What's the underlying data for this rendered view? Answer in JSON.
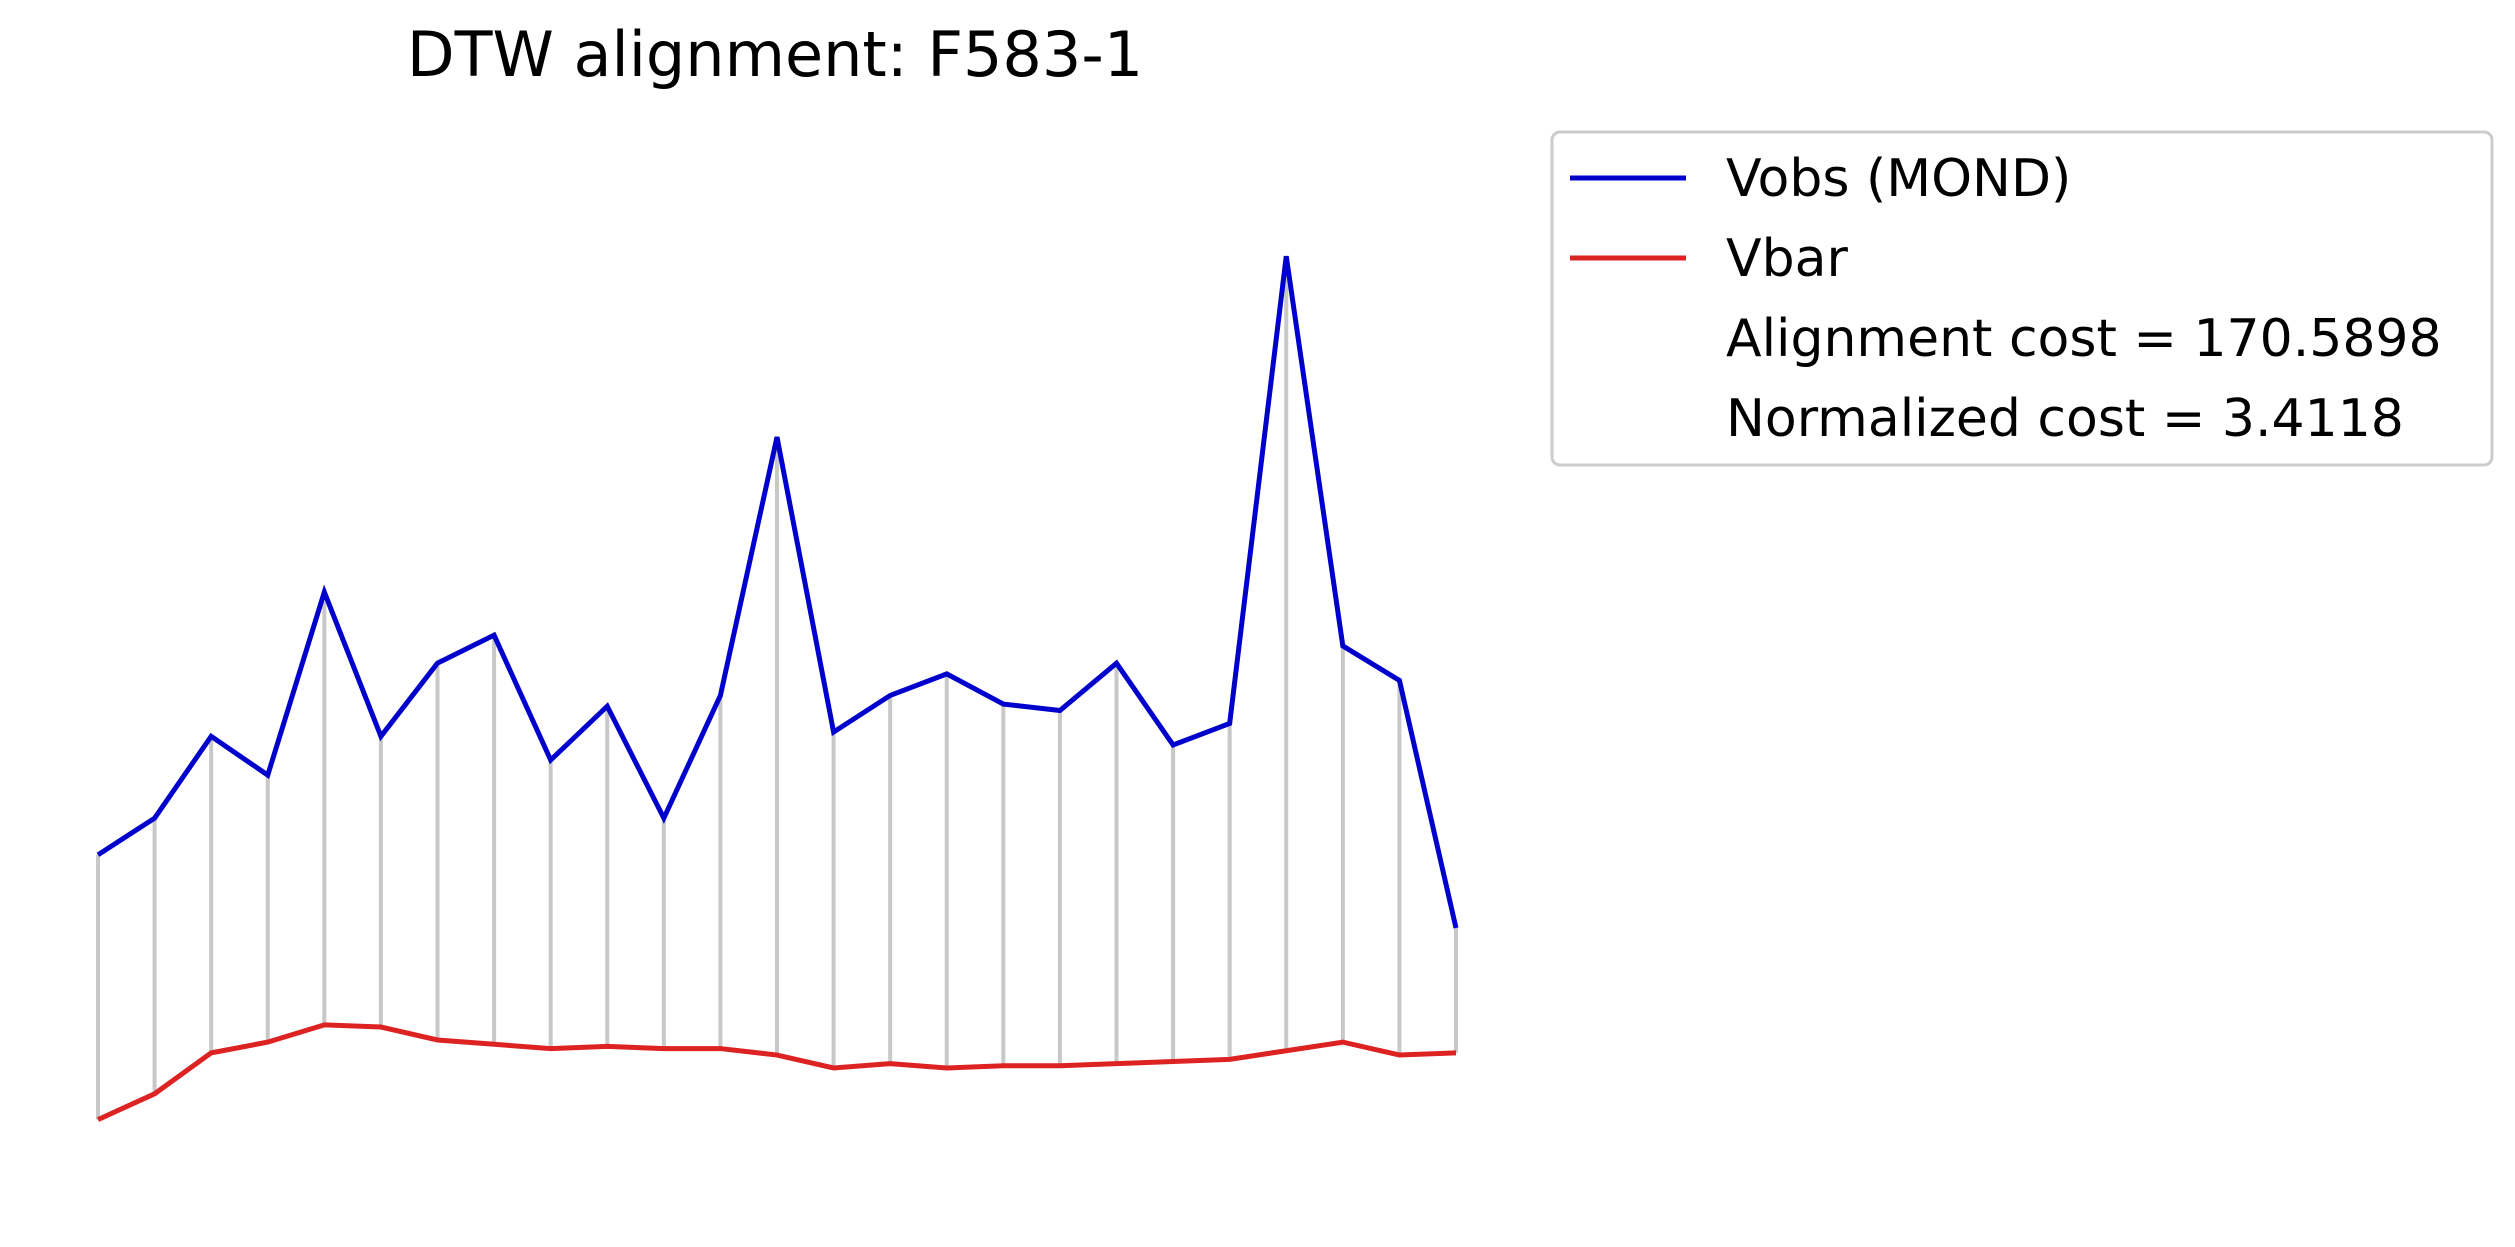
{
  "chart_data": {
    "type": "line",
    "title": "DTW alignment: F583-1",
    "xlabel": "",
    "ylabel": "",
    "axes_visible": false,
    "grid": false,
    "legend_position": "upper-right-outside",
    "ylim": [
      0,
      47
    ],
    "x": [
      0,
      1,
      2,
      3,
      4,
      5,
      6,
      7,
      8,
      9,
      10,
      11,
      12,
      13,
      14,
      15,
      16,
      17,
      18,
      19,
      20,
      21,
      22,
      23,
      24
    ],
    "series": [
      {
        "name": "Vobs (MOND)",
        "color": "#0000cc",
        "values": [
          14.5,
          16.2,
          20.0,
          18.2,
          26.7,
          20.0,
          23.4,
          24.7,
          18.9,
          21.4,
          16.2,
          21.9,
          33.9,
          20.2,
          21.9,
          22.9,
          21.5,
          21.2,
          23.4,
          19.6,
          20.6,
          42.3,
          24.2,
          22.6,
          11.1
        ]
      },
      {
        "name": "Vbar",
        "color": "#dd2222",
        "values": [
          2.2,
          3.4,
          5.3,
          5.8,
          6.6,
          6.5,
          5.9,
          5.7,
          5.5,
          5.6,
          5.5,
          5.5,
          5.2,
          4.6,
          4.8,
          4.6,
          4.7,
          4.7,
          4.8,
          4.9,
          5.0,
          5.4,
          5.8,
          5.2,
          5.3
        ]
      }
    ],
    "alignment": {
      "color": "#c8c8c8",
      "pairs": [
        [
          0,
          0
        ],
        [
          1,
          1
        ],
        [
          2,
          2
        ],
        [
          3,
          3
        ],
        [
          4,
          4
        ],
        [
          5,
          5
        ],
        [
          6,
          6
        ],
        [
          7,
          7
        ],
        [
          8,
          8
        ],
        [
          9,
          9
        ],
        [
          10,
          10
        ],
        [
          11,
          11
        ],
        [
          12,
          12
        ],
        [
          13,
          13
        ],
        [
          14,
          14
        ],
        [
          15,
          15
        ],
        [
          16,
          16
        ],
        [
          17,
          17
        ],
        [
          18,
          18
        ],
        [
          19,
          19
        ],
        [
          20,
          20
        ],
        [
          21,
          21
        ],
        [
          22,
          22
        ],
        [
          23,
          23
        ],
        [
          24,
          24
        ]
      ]
    },
    "legend_entries": [
      {
        "label": "Vobs (MOND)",
        "color": "#0000cc"
      },
      {
        "label": "Vbar",
        "color": "#dd2222"
      },
      {
        "label": "Alignment cost = 170.5898",
        "color": ""
      },
      {
        "label": "Normalized cost = 3.4118",
        "color": ""
      }
    ]
  }
}
